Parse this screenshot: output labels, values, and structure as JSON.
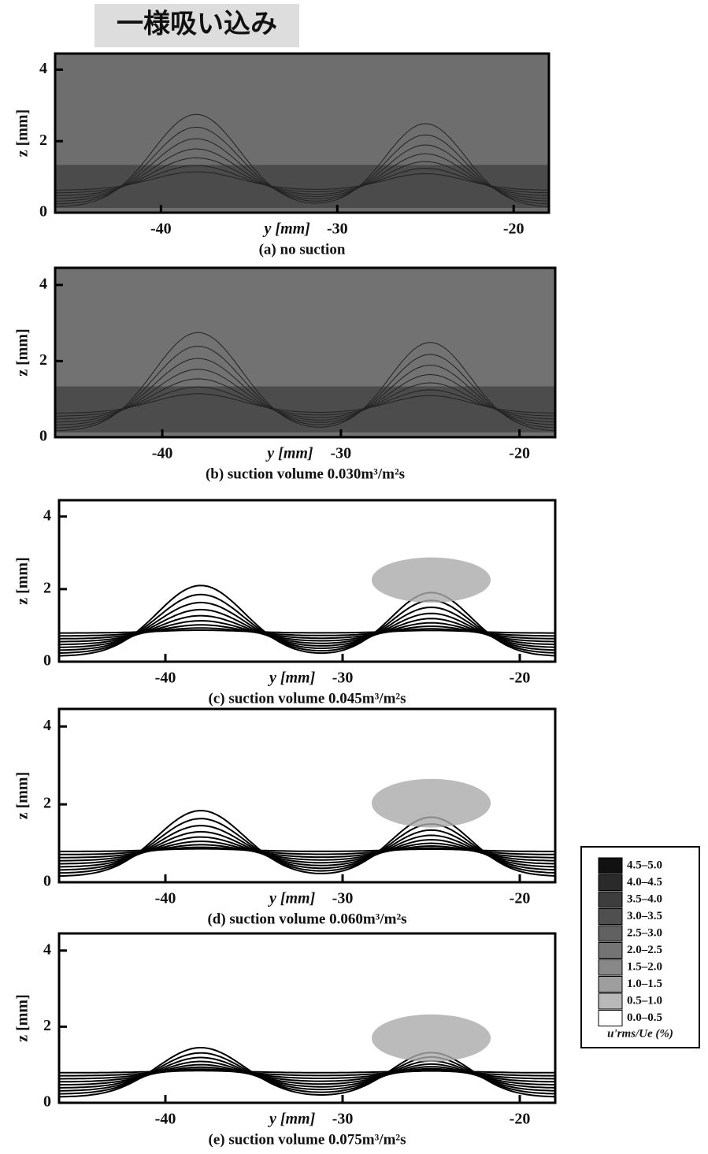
{
  "header": "一様吸い込み",
  "chart_data": [
    {
      "type": "contour",
      "caption": "(a) no suction",
      "xlabel": "y [mm]",
      "ylabel": "z [mm]",
      "xlim": [
        -46,
        -18
      ],
      "xticks": [
        -40,
        -30,
        -20
      ],
      "ylim": [
        0,
        4.45
      ],
      "yticks": [
        0,
        2,
        4
      ],
      "color": "#6e6e6e"
    },
    {
      "type": "contour",
      "caption": "(b) suction volume 0.030m³/m²s",
      "xlabel": "y [mm]",
      "ylabel": "z [mm]",
      "xlim": [
        -46,
        -18
      ],
      "xticks": [
        -40,
        -30,
        -20
      ],
      "ylim": [
        0,
        4.45
      ],
      "yticks": [
        0,
        2,
        4
      ],
      "color": "#727272"
    },
    {
      "type": "contour",
      "caption": "(c) suction volume 0.045m³/m²s",
      "xlabel": "y [mm]",
      "ylabel": "z [mm]",
      "xlim": [
        -46,
        -18
      ],
      "xticks": [
        -40,
        -30,
        -20
      ],
      "ylim": [
        0,
        4.45
      ],
      "yticks": [
        0,
        2,
        4
      ],
      "color": "#ffffff"
    },
    {
      "type": "contour",
      "caption": "(d) suction volume 0.060m³/m²s",
      "xlabel": "y [mm]",
      "ylabel": "z [mm]",
      "xlim": [
        -46,
        -18
      ],
      "xticks": [
        -40,
        -30,
        -20
      ],
      "ylim": [
        0,
        4.45
      ],
      "yticks": [
        0,
        2,
        4
      ],
      "color": "#ffffff"
    },
    {
      "type": "contour",
      "caption": "(e) suction volume 0.075m³/m²s",
      "xlabel": "y [mm]",
      "ylabel": "z [mm]",
      "xlim": [
        -46,
        -18
      ],
      "xticks": [
        -40,
        -30,
        -20
      ],
      "ylim": [
        0,
        4.45
      ],
      "yticks": [
        0,
        2,
        4
      ],
      "color": "#ffffff"
    }
  ],
  "legend": {
    "title": "u'rms/Ue (%)",
    "levels": [
      "4.5–5.0",
      "4.0–4.5",
      "3.5–4.0",
      "3.0–3.5",
      "2.5–3.0",
      "2.0–2.5",
      "1.5–2.0",
      "1.0–1.5",
      "0.5–1.0",
      "0.0–0.5"
    ],
    "colors": [
      "#111111",
      "#2a2a2a",
      "#3d3d3d",
      "#4f4f4f",
      "#616161",
      "#747474",
      "#888888",
      "#9e9e9e",
      "#b8b8b8",
      "#ffffff"
    ]
  }
}
